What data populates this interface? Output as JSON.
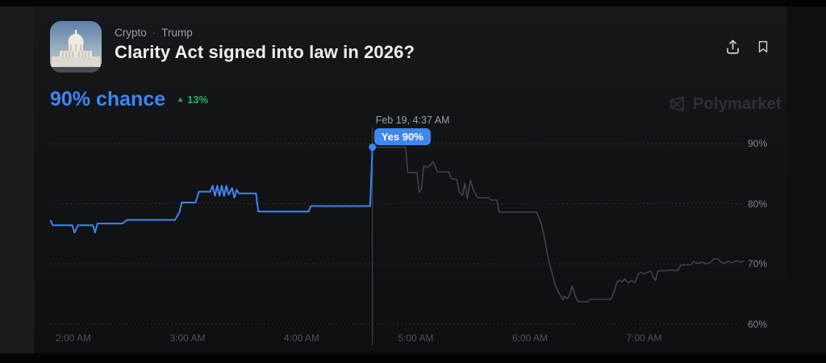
{
  "header": {
    "breadcrumb": {
      "category": "Crypto",
      "separator": "·",
      "subcategory": "Trump"
    },
    "title": "Clarity Act signed into law in 2026?"
  },
  "price": {
    "chance_text": "90% chance",
    "delta_icon": "up-triangle",
    "delta_text": "13%"
  },
  "actions": {
    "share_icon": "share-upload-icon",
    "bookmark_icon": "bookmark-icon"
  },
  "watermark": {
    "label": "Polymarket",
    "icon": "polymarket-logo-icon"
  },
  "colors": {
    "accent_blue": "#3e86f0",
    "chance_blue": "#3d87f5",
    "delta_green": "#2fae68",
    "history_gray": "#3e434a",
    "grid_gray": "#34383e"
  },
  "chart_data": {
    "type": "line",
    "title": "Yes price history with hover cursor",
    "xlabel": "",
    "ylabel": "",
    "grid": "dotted horizontal",
    "legend": "none",
    "xlim_hours": [
      1.78,
      7.93
    ],
    "ylim_percent": [
      58,
      93
    ],
    "x_ticks": [
      {
        "t": 2,
        "label": "2:00 AM"
      },
      {
        "t": 3,
        "label": "3:00 AM"
      },
      {
        "t": 4,
        "label": "4:00 AM"
      },
      {
        "t": 5,
        "label": "5:00 AM"
      },
      {
        "t": 6,
        "label": "6:00 AM"
      },
      {
        "t": 7,
        "label": "7:00 AM"
      }
    ],
    "y_ticks": [
      {
        "v": 90,
        "label": "90%"
      },
      {
        "v": 80,
        "label": "80%"
      },
      {
        "v": 70,
        "label": "70%"
      },
      {
        "v": 60,
        "label": "60%"
      }
    ],
    "cursor": {
      "t": 4.62,
      "v": 89.4,
      "time_label": "Feb 19, 4:37 AM",
      "value_label": "Yes 90%"
    },
    "series": [
      {
        "name": "yes-before-cursor",
        "color": "#3e86f0",
        "width": 2,
        "points": [
          [
            1.8,
            77.2
          ],
          [
            1.82,
            76.4
          ],
          [
            1.99,
            76.4
          ],
          [
            2.01,
            75.2
          ],
          [
            2.04,
            76.4
          ],
          [
            2.17,
            76.4
          ],
          [
            2.19,
            75.2
          ],
          [
            2.21,
            76.7
          ],
          [
            2.43,
            76.7
          ],
          [
            2.47,
            77.3
          ],
          [
            2.89,
            77.3
          ],
          [
            2.93,
            78.6
          ],
          [
            2.95,
            80.2
          ],
          [
            3.07,
            80.2
          ],
          [
            3.1,
            82.0
          ],
          [
            3.2,
            82.0
          ],
          [
            3.22,
            83.0
          ],
          [
            3.24,
            81.3
          ],
          [
            3.26,
            83.0
          ],
          [
            3.28,
            81.3
          ],
          [
            3.3,
            83.0
          ],
          [
            3.32,
            81.3
          ],
          [
            3.34,
            83.0
          ],
          [
            3.36,
            81.5
          ],
          [
            3.39,
            82.6
          ],
          [
            3.41,
            81.0
          ],
          [
            3.43,
            82.3
          ],
          [
            3.45,
            81.7
          ],
          [
            3.6,
            81.7
          ],
          [
            3.62,
            78.7
          ],
          [
            4.06,
            78.7
          ],
          [
            4.08,
            79.6
          ],
          [
            4.6,
            79.6
          ],
          [
            4.62,
            89.4
          ]
        ]
      },
      {
        "name": "yes-after-cursor",
        "color": "#3e434a",
        "width": 1.6,
        "points": [
          [
            4.62,
            89.4
          ],
          [
            4.91,
            89.4
          ],
          [
            4.93,
            85.2
          ],
          [
            5.01,
            85.2
          ],
          [
            5.03,
            81.9
          ],
          [
            5.05,
            82.5
          ],
          [
            5.07,
            86.3
          ],
          [
            5.1,
            86.0
          ],
          [
            5.13,
            86.5
          ],
          [
            5.15,
            87.0
          ],
          [
            5.17,
            86.2
          ],
          [
            5.19,
            85.3
          ],
          [
            5.29,
            85.3
          ],
          [
            5.31,
            84.2
          ],
          [
            5.36,
            84.0
          ],
          [
            5.38,
            82.0
          ],
          [
            5.41,
            81.4
          ],
          [
            5.43,
            83.4
          ],
          [
            5.45,
            80.9
          ],
          [
            5.48,
            83.9
          ],
          [
            5.5,
            82.5
          ],
          [
            5.53,
            81.3
          ],
          [
            5.55,
            81.0
          ],
          [
            5.64,
            81.0
          ],
          [
            5.66,
            80.6
          ],
          [
            5.71,
            80.6
          ],
          [
            5.73,
            78.6
          ],
          [
            6.06,
            78.6
          ],
          [
            6.08,
            77.5
          ],
          [
            6.1,
            76.7
          ],
          [
            6.13,
            74.0
          ],
          [
            6.15,
            72.0
          ],
          [
            6.17,
            70.0
          ],
          [
            6.19,
            68.7
          ],
          [
            6.22,
            66.5
          ],
          [
            6.25,
            65.3
          ],
          [
            6.27,
            64.6
          ],
          [
            6.29,
            64.0
          ],
          [
            6.3,
            64.6
          ],
          [
            6.33,
            64.2
          ],
          [
            6.35,
            65.0
          ],
          [
            6.37,
            66.3
          ],
          [
            6.4,
            64.5
          ],
          [
            6.42,
            63.7
          ],
          [
            6.51,
            63.7
          ],
          [
            6.52,
            64.1
          ],
          [
            6.71,
            64.1
          ],
          [
            6.74,
            65.5
          ],
          [
            6.76,
            66.8
          ],
          [
            6.78,
            67.3
          ],
          [
            6.81,
            67.0
          ],
          [
            6.83,
            67.5
          ],
          [
            6.86,
            66.8
          ],
          [
            6.89,
            67.2
          ],
          [
            6.92,
            66.9
          ],
          [
            6.95,
            68.3
          ],
          [
            6.97,
            68.6
          ],
          [
            7.0,
            68.3
          ],
          [
            7.03,
            68.6
          ],
          [
            7.06,
            68.8
          ],
          [
            7.08,
            67.8
          ],
          [
            7.1,
            67.2
          ],
          [
            7.12,
            68.8
          ],
          [
            7.22,
            68.9
          ],
          [
            7.3,
            68.9
          ],
          [
            7.32,
            69.8
          ],
          [
            7.41,
            69.8
          ],
          [
            7.43,
            70.3
          ],
          [
            7.47,
            70.1
          ],
          [
            7.51,
            70.3
          ],
          [
            7.54,
            70.0
          ],
          [
            7.58,
            70.2
          ],
          [
            7.61,
            70.8
          ],
          [
            7.65,
            70.8
          ],
          [
            7.67,
            70.3
          ],
          [
            7.7,
            70.1
          ],
          [
            7.74,
            70.4
          ],
          [
            7.77,
            70.2
          ],
          [
            7.81,
            70.5
          ],
          [
            7.84,
            70.3
          ],
          [
            7.87,
            70.4
          ]
        ]
      }
    ]
  }
}
